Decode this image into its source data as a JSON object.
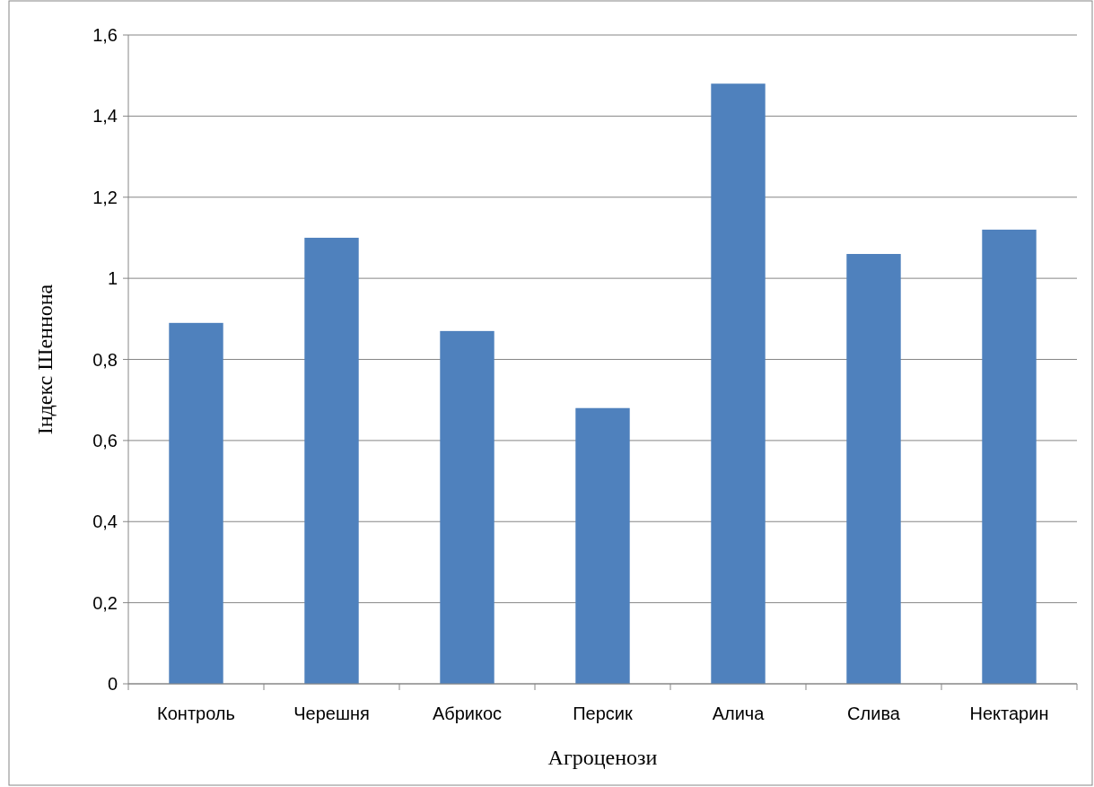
{
  "chart_data": {
    "type": "bar",
    "xlabel": "Агроценози",
    "ylabel": "Індекс Шеннона",
    "categories": [
      "Контроль",
      "Черешня",
      "Абрикос",
      "Персик",
      "Алича",
      "Слива",
      "Нектарин"
    ],
    "values": [
      0.89,
      1.1,
      0.87,
      0.68,
      1.48,
      1.06,
      1.12
    ],
    "color": "#4f81bd",
    "ylim": [
      0,
      1.6
    ],
    "yticks": [
      0,
      {
        "value": 0.2,
        "label": "0,2"
      },
      {
        "value": 0.4,
        "label": "0,4"
      },
      {
        "value": 0.6,
        "label": "0,6"
      },
      {
        "value": 0.8,
        "label": "0,8"
      },
      1,
      {
        "value": 1.2,
        "label": "1,2"
      },
      {
        "value": 1.4,
        "label": "1,4"
      },
      {
        "value": 1.6,
        "label": "1,6"
      }
    ],
    "grid": "y"
  }
}
